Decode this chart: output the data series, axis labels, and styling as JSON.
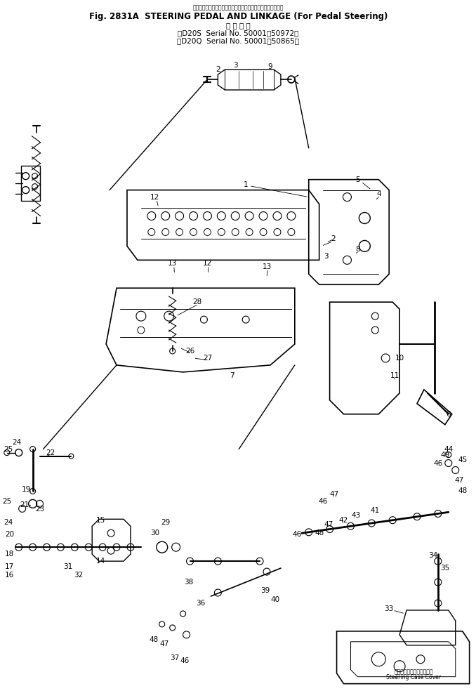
{
  "title_line1": "スアリングペタルおよびリンケージ（ペダルステアリング用）",
  "title_line2": "Fig. 2831A  STEERING PEDAL AND LINKAGE (For Pedal Steering)",
  "title_line3": "適 用 号 機",
  "title_line4": "（D20S  Serial No. 50001～50972）",
  "title_line5": "（D20Q  Serial No. 50001～50865）",
  "bg_color": "#ffffff",
  "line_color": "#000000",
  "text_color": "#000000",
  "fig_width": 6.78,
  "fig_height": 9.84,
  "dpi": 100,
  "bottom_right_label1": "ステアリングケースカバー",
  "bottom_right_label2": "Steering Case Cover"
}
